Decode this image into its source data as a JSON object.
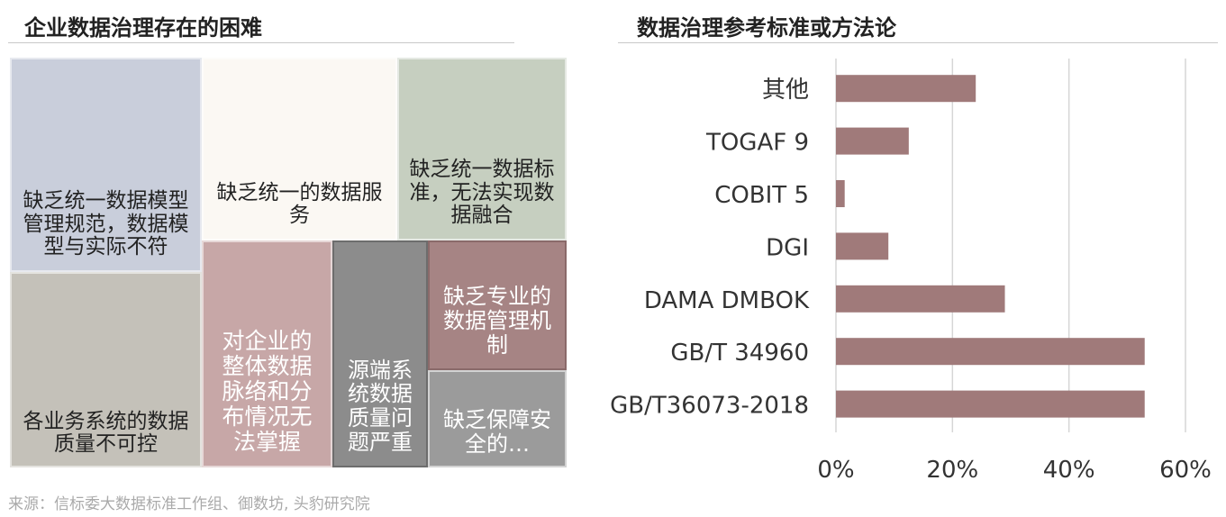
{
  "left_panel": {
    "title": "企业数据治理存在的困难"
  },
  "right_panel": {
    "title": "数据治理参考标准或方法论"
  },
  "source": "来源：信标委大数据标准工作组、御数坊, 头豹研究院",
  "colors": {
    "bar": "#a07a7a",
    "gridline": "#d6d6d6",
    "tile_1": "#c9cedb",
    "tile_2": "#fbf8f3",
    "tile_3": "#c6cfc0",
    "tile_4": "#c4c1b9",
    "tile_5": "#c7a7a7",
    "tile_6": "#8c8c8c",
    "tile_7": "#a68484",
    "tile_8": "#9b9b9b"
  },
  "chart_data": [
    {
      "type": "treemap",
      "title": "企业数据治理存在的困难",
      "items": [
        {
          "id": "tile_1",
          "label": "缺乏统一数据模型管理规范，数据模型与实际不符"
        },
        {
          "id": "tile_2",
          "label": "缺乏统一的数据服务"
        },
        {
          "id": "tile_3",
          "label": "缺乏统一数据标准，无法实现数据融合"
        },
        {
          "id": "tile_4",
          "label": "各业务系统的数据质量不可控"
        },
        {
          "id": "tile_5",
          "label": "对企业的整体数据脉络和分布情况无法掌握"
        },
        {
          "id": "tile_6",
          "label": "源端系统数据质量问题严重"
        },
        {
          "id": "tile_7",
          "label": "缺乏专业的数据管理机制"
        },
        {
          "id": "tile_8",
          "label": "缺乏保障安全的…"
        }
      ]
    },
    {
      "type": "bar",
      "orientation": "horizontal",
      "title": "数据治理参考标准或方法论",
      "categories": [
        "其他",
        "TOGAF 9",
        "COBIT 5",
        "DGI",
        "DAMA DMBOK",
        "GB/T 34960",
        "GB/T36073-2018"
      ],
      "values": [
        0.24,
        0.125,
        0.015,
        0.09,
        0.29,
        0.53,
        0.53
      ],
      "xlim": [
        0,
        0.6
      ],
      "x_ticks": [
        "0%",
        "20%",
        "40%",
        "60%"
      ],
      "grid": true
    }
  ]
}
